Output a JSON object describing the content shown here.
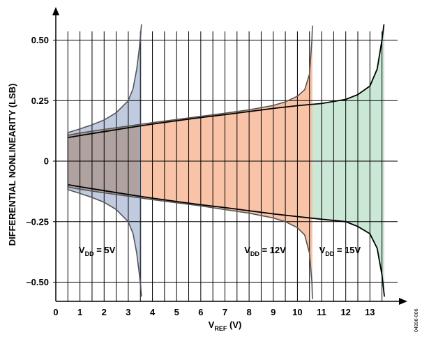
{
  "chart_data": {
    "type": "area",
    "xlabel": {
      "main": "V",
      "sub": "REF",
      "tail": " (V)"
    },
    "ylabel": "DIFFERENTIAL NONLINEARITY (LSB)",
    "xlim": [
      0,
      14
    ],
    "ylim": [
      -0.58,
      0.58
    ],
    "grid": true,
    "x_ticks": [
      {
        "v": 0,
        "label": "0"
      },
      {
        "v": 1,
        "label": "1"
      },
      {
        "v": 2,
        "label": "2"
      },
      {
        "v": 3,
        "label": "3"
      },
      {
        "v": 4,
        "label": "4"
      },
      {
        "v": 5,
        "label": "5"
      },
      {
        "v": 6,
        "label": "6"
      },
      {
        "v": 7,
        "label": "7"
      },
      {
        "v": 8,
        "label": "8"
      },
      {
        "v": 9,
        "label": "9"
      },
      {
        "v": 10,
        "label": "10"
      },
      {
        "v": 11,
        "label": "11"
      },
      {
        "v": 12,
        "label": "12"
      },
      {
        "v": 13,
        "label": "13"
      }
    ],
    "x_grid": [
      1,
      2,
      3,
      4,
      5,
      6,
      7,
      8,
      9,
      10,
      11,
      12,
      13
    ],
    "x_grid_half": [
      0.5,
      1.5,
      2.5,
      3.5,
      4.5,
      5.5,
      6.5,
      7.5,
      8.5,
      9.5,
      10.5,
      11.5,
      12.5,
      13.5
    ],
    "y_ticks": [
      {
        "v": 0.5,
        "label": "0.50"
      },
      {
        "v": 0.25,
        "label": "0.25"
      },
      {
        "v": 0,
        "label": "0"
      },
      {
        "v": -0.25,
        "label": "–0.25"
      },
      {
        "v": -0.5,
        "label": "–0.50"
      }
    ],
    "series": [
      {
        "name": "VDD = 15V",
        "color": "#2f9e5d",
        "fill": "#cbe7d6",
        "stroke": "#000000",
        "upper": [
          [
            0.5,
            0.097
          ],
          [
            1,
            0.106
          ],
          [
            2,
            0.122
          ],
          [
            3,
            0.138
          ],
          [
            4,
            0.153
          ],
          [
            5,
            0.167
          ],
          [
            6,
            0.18
          ],
          [
            7,
            0.192
          ],
          [
            8,
            0.205
          ],
          [
            9,
            0.218
          ],
          [
            10,
            0.229
          ],
          [
            11,
            0.238
          ],
          [
            12,
            0.255
          ],
          [
            12.5,
            0.275
          ],
          [
            13,
            0.31
          ],
          [
            13.3,
            0.38
          ],
          [
            13.5,
            0.5
          ],
          [
            13.6,
            0.58
          ]
        ],
        "lower": [
          [
            0.5,
            -0.097
          ],
          [
            1,
            -0.106
          ],
          [
            2,
            -0.122
          ],
          [
            3,
            -0.138
          ],
          [
            4,
            -0.153
          ],
          [
            5,
            -0.167
          ],
          [
            6,
            -0.18
          ],
          [
            7,
            -0.192
          ],
          [
            8,
            -0.205
          ],
          [
            9,
            -0.218
          ],
          [
            10,
            -0.229
          ],
          [
            11,
            -0.24
          ],
          [
            12,
            -0.25
          ],
          [
            12.5,
            -0.27
          ],
          [
            13,
            -0.3
          ],
          [
            13.3,
            -0.36
          ],
          [
            13.5,
            -0.47
          ],
          [
            13.6,
            -0.56
          ]
        ]
      },
      {
        "name": "VDD = 12V",
        "color": "#e8703d",
        "fill": "#f9c3a7",
        "stroke": "#555555",
        "upper": [
          [
            0.5,
            0.107
          ],
          [
            1,
            0.116
          ],
          [
            2,
            0.131
          ],
          [
            3,
            0.145
          ],
          [
            4,
            0.159
          ],
          [
            5,
            0.172
          ],
          [
            6,
            0.185
          ],
          [
            7,
            0.198
          ],
          [
            8,
            0.212
          ],
          [
            9,
            0.23
          ],
          [
            9.5,
            0.245
          ],
          [
            10,
            0.268
          ],
          [
            10.3,
            0.295
          ],
          [
            10.5,
            0.36
          ],
          [
            10.6,
            0.5
          ],
          [
            10.62,
            0.56
          ]
        ],
        "lower": [
          [
            0.5,
            -0.107
          ],
          [
            1,
            -0.116
          ],
          [
            2,
            -0.131
          ],
          [
            3,
            -0.145
          ],
          [
            4,
            -0.159
          ],
          [
            5,
            -0.172
          ],
          [
            6,
            -0.185
          ],
          [
            7,
            -0.2
          ],
          [
            8,
            -0.215
          ],
          [
            9,
            -0.235
          ],
          [
            9.5,
            -0.25
          ],
          [
            10,
            -0.275
          ],
          [
            10.3,
            -0.305
          ],
          [
            10.5,
            -0.38
          ],
          [
            10.6,
            -0.5
          ],
          [
            10.62,
            -0.57
          ]
        ]
      },
      {
        "name": "VDD = 5V",
        "color": "#7e94bd",
        "fill": "#c1cbe0",
        "stroke": "#555555",
        "upper": [
          [
            0.5,
            0.118
          ],
          [
            1,
            0.133
          ],
          [
            1.5,
            0.15
          ],
          [
            2,
            0.17
          ],
          [
            2.5,
            0.2
          ],
          [
            3,
            0.25
          ],
          [
            3.2,
            0.3
          ],
          [
            3.35,
            0.38
          ],
          [
            3.45,
            0.46
          ],
          [
            3.55,
            0.57
          ]
        ],
        "lower": [
          [
            0.5,
            -0.118
          ],
          [
            1,
            -0.133
          ],
          [
            1.5,
            -0.15
          ],
          [
            2,
            -0.17
          ],
          [
            2.5,
            -0.2
          ],
          [
            3,
            -0.25
          ],
          [
            3.2,
            -0.3
          ],
          [
            3.35,
            -0.38
          ],
          [
            3.45,
            -0.46
          ],
          [
            3.55,
            -0.56
          ]
        ]
      }
    ],
    "overlap_fill": "#ab9b95",
    "annotations": [
      {
        "main": "V",
        "sub": "DD",
        "tail": " = 5V",
        "x": 0.95,
        "y": -0.38
      },
      {
        "main": "V",
        "sub": "DD",
        "tail": " = 12V",
        "x": 7.8,
        "y": -0.38
      },
      {
        "main": "V",
        "sub": "DD",
        "tail": " = 15V",
        "x": 10.9,
        "y": -0.38
      }
    ],
    "figure_id": "04996-006"
  }
}
